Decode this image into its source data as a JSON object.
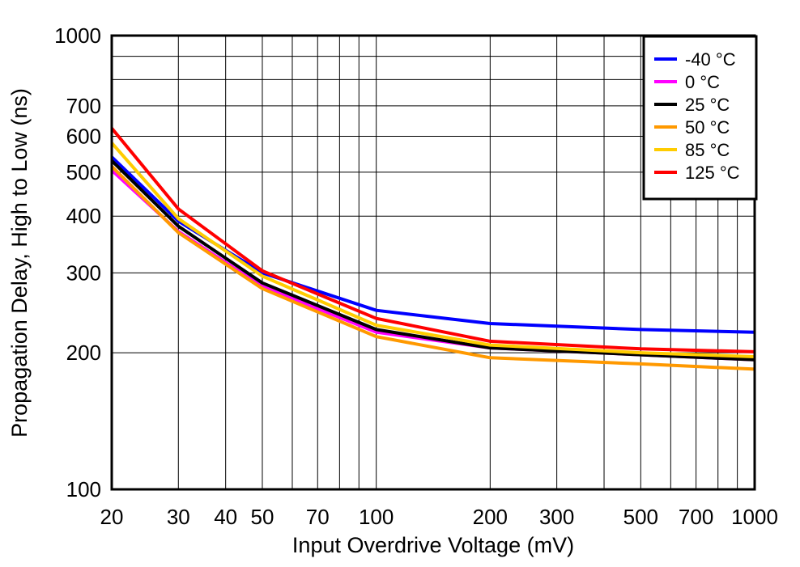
{
  "chart_data": {
    "type": "line",
    "scale": {
      "x": "log",
      "y": "log"
    },
    "xlabel": "Input Overdrive Voltage (mV)",
    "ylabel": "Propagation Delay, High to Low (ns)",
    "xlim": [
      20,
      1000
    ],
    "ylim": [
      100,
      1000
    ],
    "x_ticks": [
      20,
      30,
      40,
      50,
      70,
      100,
      200,
      300,
      500,
      700,
      1000
    ],
    "x_tick_labels": [
      "20",
      "30",
      "40",
      "50",
      "70",
      "100",
      "200",
      "300",
      "500",
      "700",
      "1000"
    ],
    "y_ticks": [
      100,
      200,
      300,
      400,
      500,
      600,
      700,
      1000
    ],
    "y_tick_labels": [
      "100",
      "200",
      "300",
      "400",
      "500",
      "600",
      "700",
      "1000"
    ],
    "x_grid": [
      20,
      30,
      40,
      50,
      60,
      70,
      80,
      90,
      100,
      200,
      300,
      400,
      500,
      600,
      700,
      800,
      900,
      1000
    ],
    "y_grid": [
      100,
      200,
      300,
      400,
      500,
      600,
      700,
      800,
      900,
      1000
    ],
    "x": [
      20,
      30,
      50,
      100,
      200,
      500,
      1000
    ],
    "series": [
      {
        "name": "-40 °C",
        "color": "#0000ff",
        "values": [
          540,
          390,
          300,
          248,
          232,
          225,
          222
        ]
      },
      {
        "name": "0 °C",
        "color": "#ff00ff",
        "values": [
          505,
          370,
          280,
          222,
          205,
          198,
          193
        ]
      },
      {
        "name": "25 °C",
        "color": "#000000",
        "values": [
          530,
          380,
          285,
          225,
          205,
          198,
          193
        ]
      },
      {
        "name": "50 °C",
        "color": "#ff9900",
        "values": [
          515,
          368,
          277,
          217,
          195,
          189,
          184
        ]
      },
      {
        "name": "85 °C",
        "color": "#ffcc00",
        "values": [
          580,
          395,
          295,
          230,
          208,
          200,
          196
        ]
      },
      {
        "name": "125 °C",
        "color": "#ff0000",
        "values": [
          625,
          415,
          303,
          238,
          212,
          204,
          201
        ]
      }
    ],
    "legend": {
      "position": "top-right"
    }
  }
}
